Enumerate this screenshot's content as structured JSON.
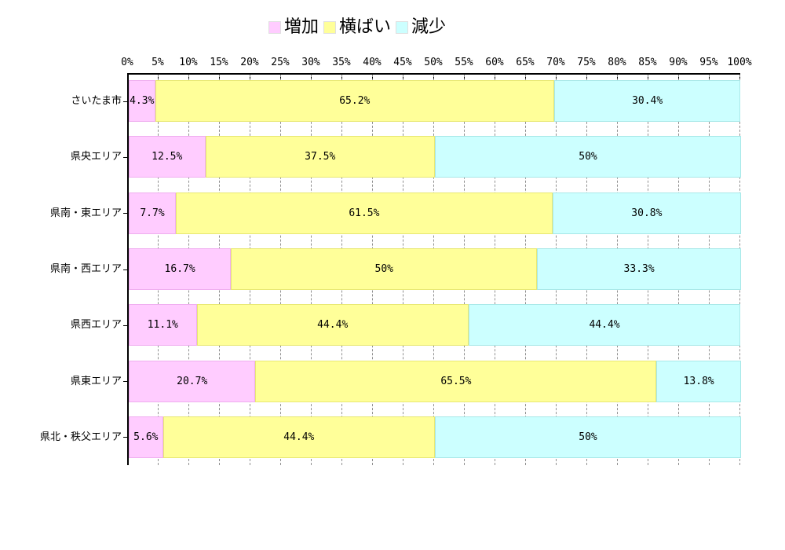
{
  "chart_data": {
    "type": "bar",
    "variant": "horizontal-stacked-100pct",
    "title": "",
    "legend_position": "top-center",
    "grid": true,
    "categories": [
      "さいたま市",
      "県央エリア",
      "県南・東エリア",
      "県南・西エリア",
      "県西エリア",
      "県東エリア",
      "県北・秩父エリア"
    ],
    "series": [
      {
        "name": "増加",
        "color": "#FFCCFF",
        "border_color": "#EFAEEF",
        "values": [
          4.3,
          12.5,
          7.7,
          16.7,
          11.1,
          20.7,
          5.6
        ],
        "labels": [
          "4.3%",
          "12.5%",
          "7.7%",
          "16.7%",
          "11.1%",
          "20.7%",
          "5.6%"
        ]
      },
      {
        "name": "横ばい",
        "color": "#FFFF99",
        "border_color": "#E8E873",
        "values": [
          65.2,
          37.5,
          61.5,
          50,
          44.4,
          65.5,
          44.4
        ],
        "labels": [
          "65.2%",
          "37.5%",
          "61.5%",
          "50%",
          "44.4%",
          "65.5%",
          "44.4%"
        ]
      },
      {
        "name": "減少",
        "color": "#CCFFFF",
        "border_color": "#A8E8E8",
        "values": [
          30.4,
          50,
          30.8,
          33.3,
          44.4,
          13.8,
          50
        ],
        "labels": [
          "30.4%",
          "50%",
          "30.8%",
          "33.3%",
          "44.4%",
          "13.8%",
          "50%"
        ]
      }
    ],
    "x_axis": {
      "min": 0,
      "max": 100,
      "step": 5,
      "tick_labels": [
        "0%",
        "5%",
        "10%",
        "15%",
        "20%",
        "25%",
        "30%",
        "35%",
        "40%",
        "45%",
        "50%",
        "55%",
        "60%",
        "65%",
        "70%",
        "75%",
        "80%",
        "85%",
        "90%",
        "95%",
        "100%"
      ]
    },
    "colors": {
      "axis": "#000000",
      "gridline": "#909090",
      "text": "#000000",
      "background": "#FFFFFF"
    }
  }
}
